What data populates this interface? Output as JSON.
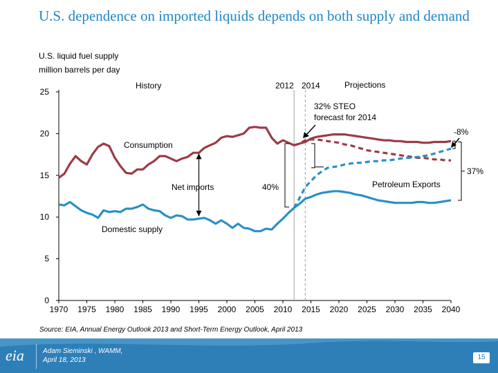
{
  "slide": {
    "title": "U.S. dependence on imported liquids depends on both supply and demand",
    "subtitle_line1": "U.S. liquid fuel supply",
    "subtitle_line2": "million barrels per day",
    "source": "Source:  EIA, Annual Energy Outlook 2013 and Short-Term Energy Outlook, April 2013",
    "footer": {
      "logo": "eia",
      "presenter": "Adam Sieminski , WAMM,",
      "date": "April 18, 2013",
      "page": "15"
    }
  },
  "colors": {
    "consumption": "#9b3b45",
    "supply": "#2b8fc6",
    "title": "#1f86c8",
    "footer": "#2e7fb8"
  },
  "chart_data": {
    "type": "line",
    "ylim": [
      0,
      25
    ],
    "xlim": [
      1970,
      2040
    ],
    "y_ticks": [
      "0",
      "5",
      "10",
      "15",
      "20",
      "25"
    ],
    "x_ticks": [
      "1970",
      "1975",
      "1980",
      "1985",
      "1990",
      "1995",
      "2000",
      "2005",
      "2010",
      "2015",
      "2020",
      "2025",
      "2030",
      "2035",
      "2040"
    ],
    "series": [
      {
        "name": "Consumption",
        "x": [
          1970,
          1971,
          1972,
          1973,
          1974,
          1975,
          1976,
          1977,
          1978,
          1979,
          1980,
          1981,
          1982,
          1983,
          1984,
          1985,
          1986,
          1987,
          1988,
          1989,
          1990,
          1991,
          1992,
          1993,
          1994,
          1995,
          1996,
          1997,
          1998,
          1999,
          2000,
          2001,
          2002,
          2003,
          2004,
          2005,
          2006,
          2007,
          2008,
          2009,
          2010,
          2011,
          2012,
          2013,
          2014,
          2015,
          2016,
          2017,
          2018,
          2019,
          2020,
          2021,
          2022,
          2023,
          2024,
          2025,
          2026,
          2027,
          2028,
          2029,
          2030,
          2031,
          2032,
          2033,
          2034,
          2035,
          2036,
          2037,
          2038,
          2039,
          2040
        ],
        "y": [
          14.7,
          15.2,
          16.4,
          17.3,
          16.7,
          16.3,
          17.5,
          18.4,
          18.8,
          18.5,
          17.1,
          16.1,
          15.3,
          15.2,
          15.7,
          15.7,
          16.3,
          16.7,
          17.3,
          17.3,
          17.0,
          16.7,
          17.0,
          17.2,
          17.7,
          17.7,
          18.3,
          18.6,
          18.9,
          19.5,
          19.7,
          19.6,
          19.8,
          20.0,
          20.7,
          20.8,
          20.7,
          20.7,
          19.5,
          18.8,
          19.2,
          18.9,
          18.6,
          18.8,
          19.0,
          19.4,
          19.6,
          19.7,
          19.8,
          19.9,
          19.9,
          19.9,
          19.8,
          19.7,
          19.6,
          19.5,
          19.4,
          19.3,
          19.2,
          19.2,
          19.1,
          19.1,
          19.0,
          19.0,
          19.0,
          18.9,
          18.9,
          19.0,
          19.0,
          19.0,
          19.1
        ]
      },
      {
        "name": "Domestic supply",
        "x": [
          1970,
          1971,
          1972,
          1973,
          1974,
          1975,
          1976,
          1977,
          1978,
          1979,
          1980,
          1981,
          1982,
          1983,
          1984,
          1985,
          1986,
          1987,
          1988,
          1989,
          1990,
          1991,
          1992,
          1993,
          1994,
          1995,
          1996,
          1997,
          1998,
          1999,
          2000,
          2001,
          2002,
          2003,
          2004,
          2005,
          2006,
          2007,
          2008,
          2009,
          2010,
          2011,
          2012,
          2013,
          2014,
          2015,
          2016,
          2017,
          2018,
          2019,
          2020,
          2021,
          2022,
          2023,
          2024,
          2025,
          2026,
          2027,
          2028,
          2029,
          2030,
          2031,
          2032,
          2033,
          2034,
          2035,
          2036,
          2037,
          2038,
          2039,
          2040
        ],
        "y": [
          11.5,
          11.4,
          11.8,
          11.3,
          10.8,
          10.5,
          10.3,
          9.9,
          10.8,
          10.6,
          10.7,
          10.6,
          11.0,
          11.0,
          11.2,
          11.5,
          11.0,
          10.8,
          10.7,
          10.2,
          9.9,
          10.2,
          10.1,
          9.7,
          9.7,
          9.8,
          9.9,
          9.6,
          9.2,
          9.6,
          9.2,
          8.7,
          9.2,
          8.7,
          8.6,
          8.3,
          8.3,
          8.6,
          8.5,
          9.2,
          9.8,
          10.5,
          11.1,
          11.6,
          12.2,
          12.4,
          12.7,
          12.9,
          13.0,
          13.1,
          13.1,
          13.0,
          12.9,
          12.7,
          12.6,
          12.4,
          12.2,
          12.0,
          11.9,
          11.8,
          11.7,
          11.7,
          11.7,
          11.7,
          11.8,
          11.8,
          11.7,
          11.7,
          11.8,
          11.9,
          12.0
        ]
      },
      {
        "name": "STEO forecast consumption",
        "x": [
          2012,
          2013,
          2014,
          2015,
          2016,
          2017,
          2018,
          2019,
          2020,
          2021,
          2022,
          2023,
          2024,
          2025,
          2026,
          2027,
          2028,
          2029,
          2030,
          2031,
          2032,
          2033,
          2034,
          2035,
          2036,
          2037,
          2038,
          2039,
          2040
        ],
        "y": [
          18.6,
          18.8,
          19.2,
          19.3,
          19.3,
          19.2,
          19.1,
          19.0,
          18.9,
          18.7,
          18.6,
          18.4,
          18.2,
          18.0,
          17.9,
          17.8,
          17.7,
          17.6,
          17.5,
          17.4,
          17.3,
          17.2,
          17.1,
          17.1,
          17.0,
          16.9,
          16.9,
          16.8,
          16.8
        ]
      },
      {
        "name": "STEO forecast domestic supply",
        "x": [
          2012,
          2013,
          2014,
          2015,
          2016,
          2017,
          2018,
          2019,
          2020,
          2021,
          2022,
          2023,
          2024,
          2025,
          2026,
          2027,
          2028,
          2029,
          2030,
          2031,
          2032,
          2033,
          2034,
          2035,
          2036,
          2037,
          2038,
          2039,
          2040
        ],
        "y": [
          11.1,
          12.3,
          13.6,
          14.3,
          15.0,
          15.5,
          15.9,
          16.0,
          16.1,
          16.3,
          16.4,
          16.5,
          16.5,
          16.6,
          16.7,
          16.7,
          16.8,
          16.8,
          16.9,
          17.0,
          17.1,
          17.1,
          17.2,
          17.3,
          17.4,
          17.6,
          17.8,
          18.0,
          18.2
        ]
      }
    ],
    "annotations": {
      "history": "History",
      "projections": "Projections",
      "y2012": "2012",
      "y2014": "2014",
      "steo_line1": "32% STEO",
      "steo_line2": "forecast for 2014",
      "consumption": "Consumption",
      "net_imports": "Net imports",
      "pct40": "40%",
      "domestic_supply": "Domestic supply",
      "petroleum_exports": "Petroleum Exports",
      "minus8": "-8%",
      "pct37": "37%"
    }
  }
}
